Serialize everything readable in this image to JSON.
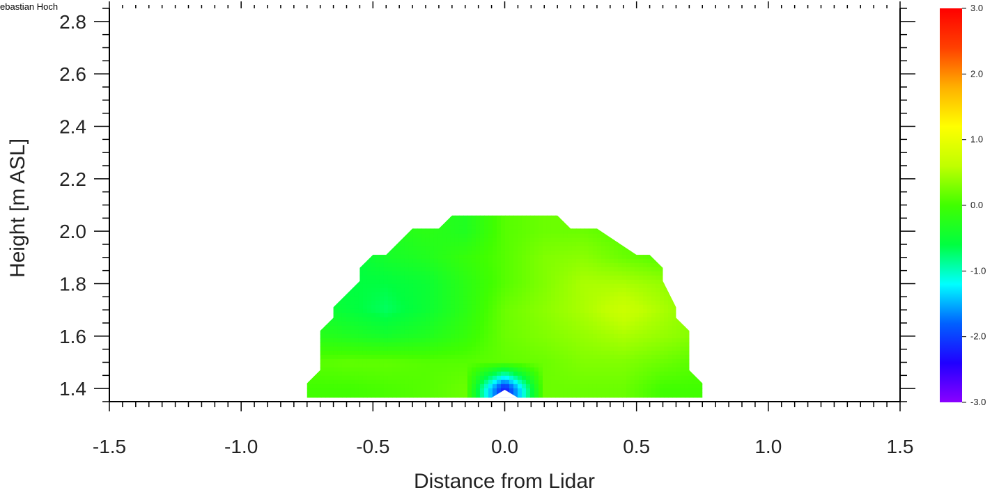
{
  "credit": "ebastian Hoch",
  "chart_data": {
    "type": "heatmap",
    "title": "",
    "xlabel": "Distance from Lidar",
    "ylabel": "Height [m ASL]",
    "xlim": [
      -1.5,
      1.5
    ],
    "ylim": [
      1.35,
      2.85
    ],
    "x_ticks": [
      "-1.5",
      "-1.0",
      "-0.5",
      "0.0",
      "0.5",
      "1.0",
      "1.5"
    ],
    "y_ticks": [
      "1.4",
      "1.6",
      "1.8",
      "2.0",
      "2.2",
      "2.4",
      "2.6",
      "2.8"
    ],
    "colorbar": {
      "range": [
        -3.0,
        3.0
      ],
      "ticks": [
        "3.0",
        "2.0",
        "1.0",
        "0.0",
        "-1.0",
        "-2.0",
        "-3.0"
      ],
      "colormap": [
        "#8a00ff",
        "#2000ff",
        "#0060ff",
        "#00ffff",
        "#00ff40",
        "#40ff00",
        "#c0ff00",
        "#ffff00",
        "#ffb000",
        "#ff4000",
        "#ff0000"
      ]
    },
    "field": {
      "x": [
        -0.75,
        -0.6,
        -0.45,
        -0.3,
        -0.15,
        0.0,
        0.15,
        0.3,
        0.45,
        0.6,
        0.75
      ],
      "y": [
        1.4,
        1.5,
        1.6,
        1.7,
        1.8,
        1.9,
        2.0
      ],
      "values": [
        [
          0.0,
          0.0,
          0.05,
          0.1,
          0.2,
          -2.3,
          0.2,
          0.2,
          0.2,
          0.0,
          0.0
        ],
        [
          0.1,
          0.15,
          0.15,
          0.1,
          0.1,
          0.15,
          0.2,
          0.3,
          0.3,
          0.2,
          0.1
        ],
        [
          -0.2,
          -0.3,
          -0.4,
          -0.3,
          -0.1,
          0.2,
          0.3,
          0.4,
          0.5,
          0.4,
          0.3
        ],
        [
          -0.4,
          -0.55,
          -0.7,
          -0.5,
          -0.2,
          0.2,
          0.35,
          0.5,
          0.7,
          0.5,
          0.3
        ],
        [
          -0.5,
          -0.6,
          -0.6,
          -0.5,
          -0.2,
          0.1,
          0.3,
          0.5,
          0.5,
          0.4,
          0.2
        ],
        [
          -0.5,
          -0.6,
          -0.4,
          -0.3,
          -0.1,
          0.1,
          0.3,
          0.35,
          0.2,
          0.1,
          0.0
        ],
        [
          -0.2,
          -0.3,
          -0.3,
          -0.2,
          -0.3,
          0.1,
          0.2,
          0.2,
          0.1,
          0.0,
          0.0
        ]
      ],
      "domain_outline": [
        [
          -0.75,
          1.365
        ],
        [
          -0.75,
          1.42
        ],
        [
          -0.7,
          1.47
        ],
        [
          -0.7,
          1.62
        ],
        [
          -0.65,
          1.67
        ],
        [
          -0.65,
          1.71
        ],
        [
          -0.55,
          1.81
        ],
        [
          -0.55,
          1.86
        ],
        [
          -0.5,
          1.91
        ],
        [
          -0.45,
          1.91
        ],
        [
          -0.35,
          2.01
        ],
        [
          -0.25,
          2.01
        ],
        [
          -0.2,
          2.06
        ],
        [
          0.2,
          2.06
        ],
        [
          0.25,
          2.01
        ],
        [
          0.35,
          2.01
        ],
        [
          0.5,
          1.91
        ],
        [
          0.55,
          1.91
        ],
        [
          0.6,
          1.86
        ],
        [
          0.6,
          1.81
        ],
        [
          0.65,
          1.71
        ],
        [
          0.65,
          1.67
        ],
        [
          0.7,
          1.62
        ],
        [
          0.7,
          1.47
        ],
        [
          0.75,
          1.42
        ],
        [
          0.75,
          1.365
        ]
      ]
    }
  }
}
